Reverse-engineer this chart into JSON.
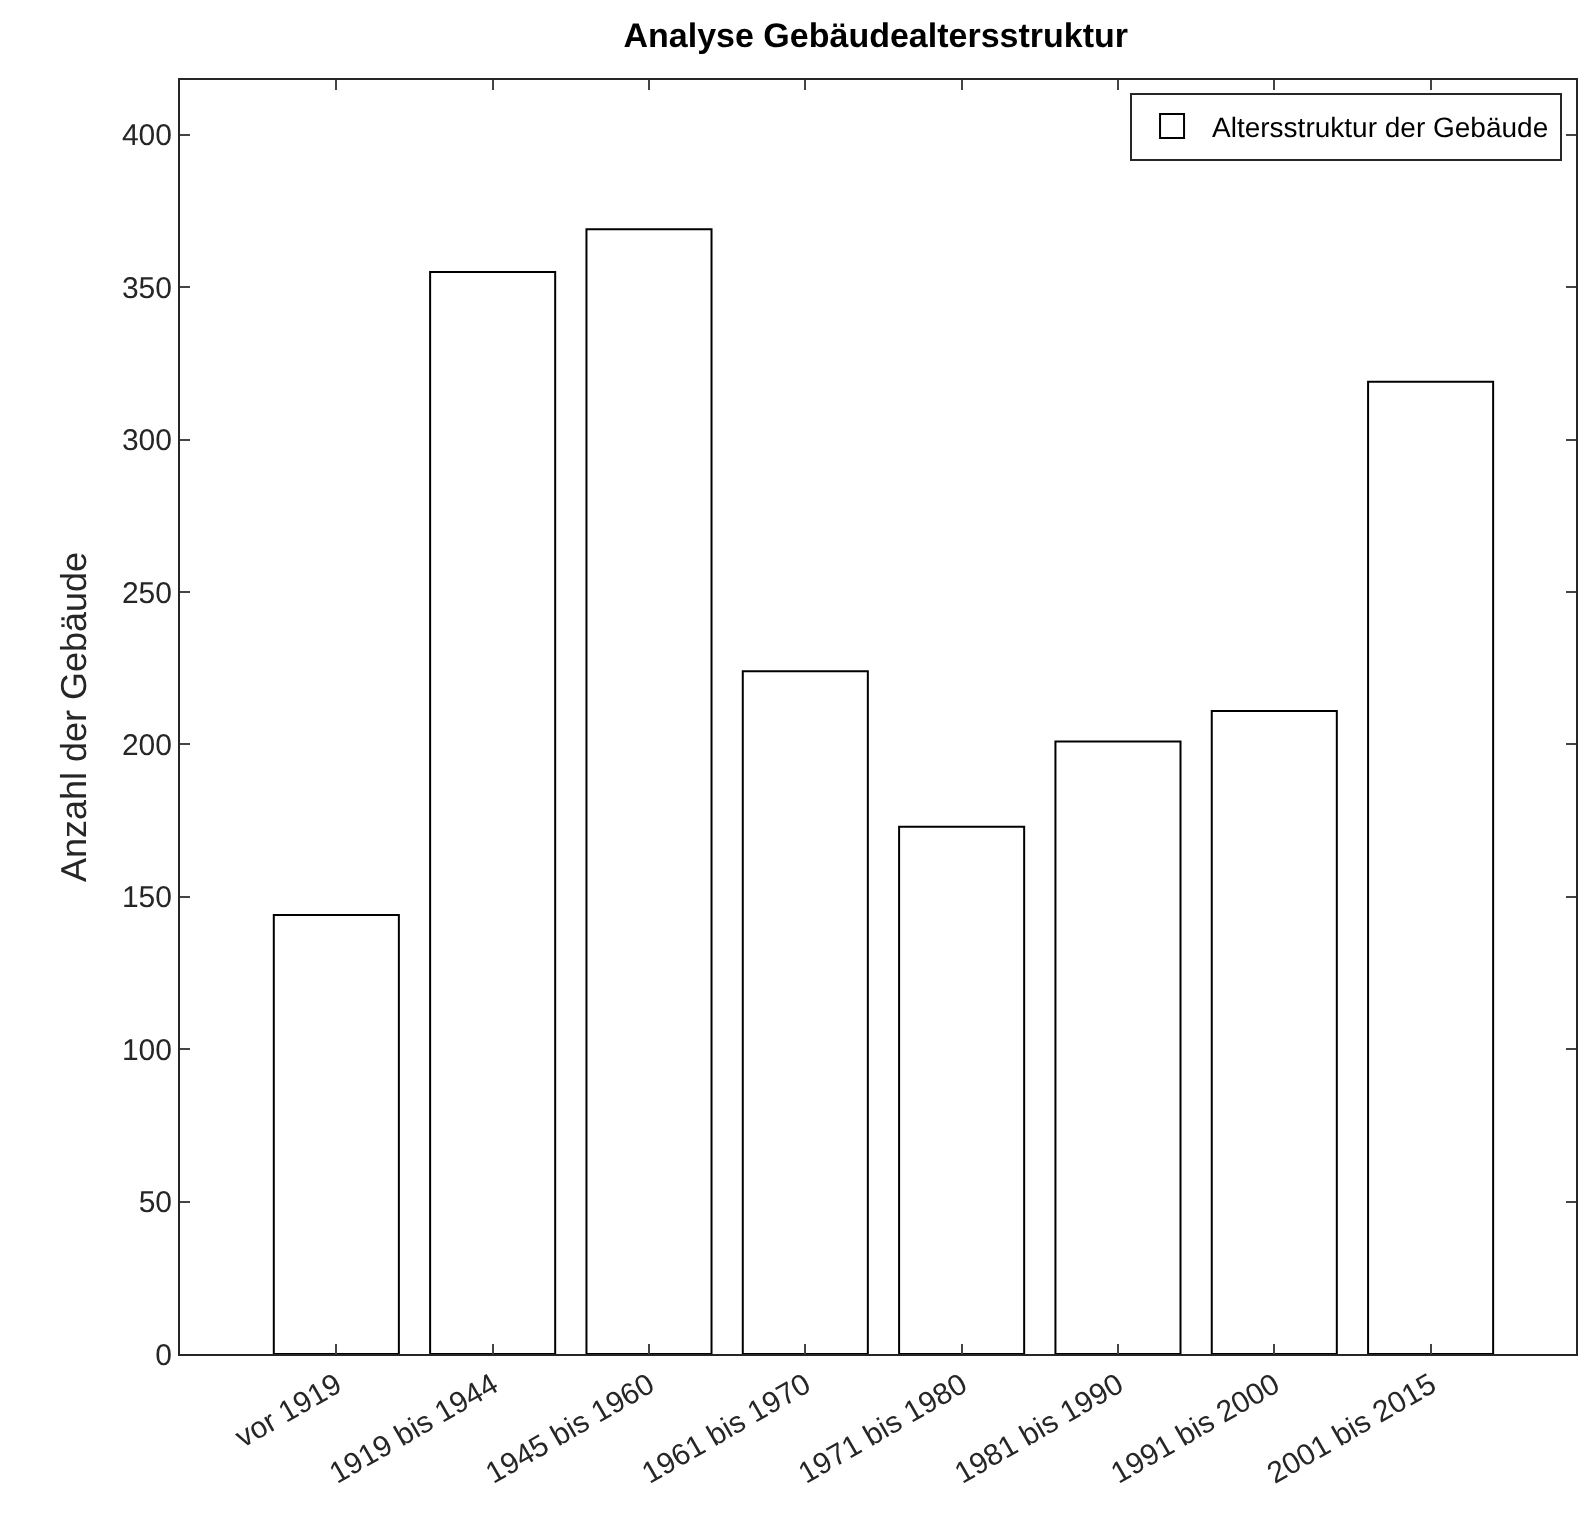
{
  "chart_data": {
    "type": "bar",
    "title": "Analyse Gebäudealtersstruktur",
    "ylabel": "Anzahl der Gebäude",
    "categories": [
      "vor 1919",
      "1919 bis 1944",
      "1945 bis 1960",
      "1961 bis 1970",
      "1971 bis 1980",
      "1981 bis 1990",
      "1991 bis 2000",
      "2001 bis 2015"
    ],
    "series": [
      {
        "name": "Altersstruktur der Gebäude",
        "color": "#ffffff",
        "values": [
          144,
          355,
          369,
          224,
          173,
          201,
          211,
          319
        ]
      }
    ],
    "ylim": [
      0,
      418
    ],
    "yticks": [
      0,
      50,
      100,
      150,
      200,
      250,
      300,
      350,
      400
    ],
    "grid": false,
    "legend": "top right"
  }
}
